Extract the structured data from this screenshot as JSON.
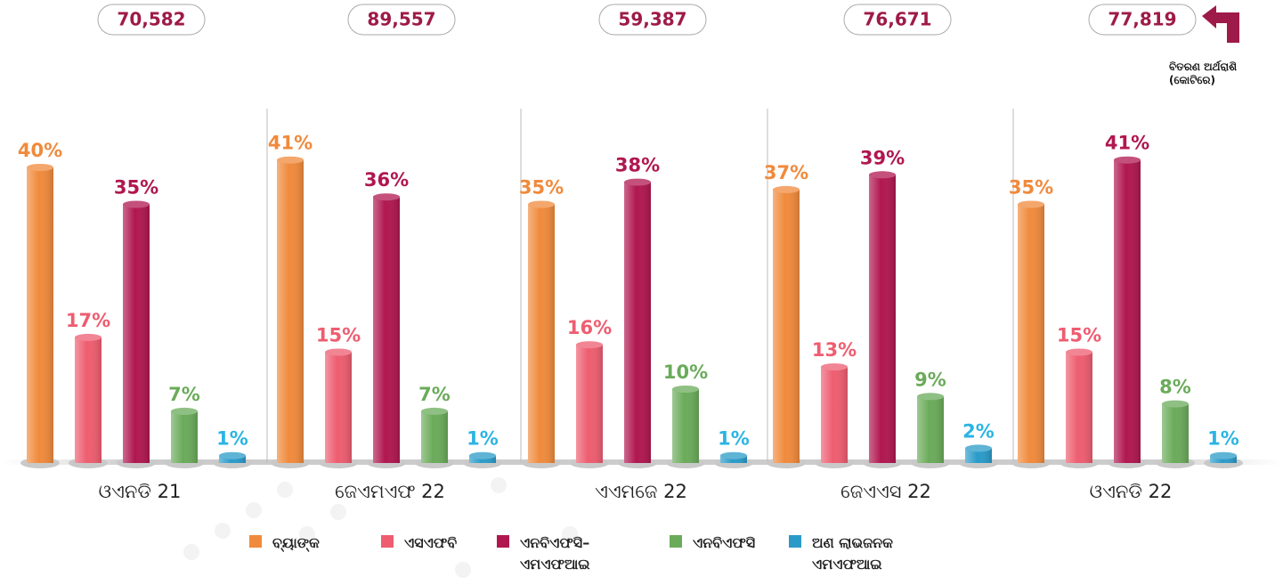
{
  "chart_data": {
    "type": "bar",
    "categories": [
      "ଓଏନଡି 21",
      "ଜେଏମଏଫ 22",
      "ଏଏମଜେ 22",
      "ଜେଏଏସ 22",
      "ଓଏନଡି 22"
    ],
    "totals": {
      "values": [
        70582,
        89557,
        59387,
        76671,
        77819
      ],
      "value_labels": [
        "70,582",
        "89,557",
        "59,387",
        "76,671",
        "77,819"
      ]
    },
    "totals_note": "ବିତରଣ ଅର୍ଥରାଶି (କୋଟିରେ)",
    "series": [
      {
        "name": "ବ୍ୟାଙ୍କ",
        "color": "#f08a3c",
        "values": [
          40,
          41,
          35,
          37,
          35
        ],
        "value_labels": [
          "40%",
          "41%",
          "35%",
          "37%",
          "35%"
        ]
      },
      {
        "name": "ଏସଏଫବି",
        "color": "#ee5d70",
        "values": [
          17,
          15,
          16,
          13,
          15
        ],
        "value_labels": [
          "17%",
          "15%",
          "16%",
          "13%",
          "15%"
        ]
      },
      {
        "name": "ଏନବିଏଫସି– ଏମଏଫଆଇ",
        "color": "#b0174f",
        "values": [
          35,
          36,
          38,
          39,
          41
        ],
        "value_labels": [
          "35%",
          "36%",
          "38%",
          "39%",
          "41%"
        ]
      },
      {
        "name": "ଏନବିଏଫସି",
        "color": "#6aab5a",
        "values": [
          7,
          7,
          10,
          9,
          8
        ],
        "value_labels": [
          "7%",
          "7%",
          "10%",
          "9%",
          "8%"
        ]
      },
      {
        "name": "ଅଣ ଲାଭଜନକ ଏମଏଫଆଇ",
        "color": "#2a9bc9",
        "values": [
          1,
          1,
          1,
          2,
          1
        ],
        "value_labels": [
          "1%",
          "1%",
          "1%",
          "2%",
          "1%"
        ]
      }
    ]
  }
}
